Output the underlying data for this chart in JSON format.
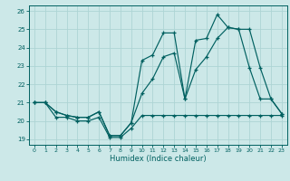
{
  "xlabel": "Humidex (Indice chaleur)",
  "background_color": "#cce8e8",
  "grid_color": "#add4d4",
  "line_color": "#006060",
  "xlim": [
    -0.5,
    23.5
  ],
  "ylim": [
    18.7,
    26.3
  ],
  "yticks": [
    19,
    20,
    21,
    22,
    23,
    24,
    25,
    26
  ],
  "xticks": [
    0,
    1,
    2,
    3,
    4,
    5,
    6,
    7,
    8,
    9,
    10,
    11,
    12,
    13,
    14,
    15,
    16,
    17,
    18,
    19,
    20,
    21,
    22,
    23
  ],
  "series1_x": [
    0,
    1,
    2,
    3,
    4,
    5,
    6,
    7,
    8,
    9,
    10,
    11,
    12,
    13,
    14,
    15,
    16,
    17,
    18,
    19,
    20,
    21,
    22,
    23
  ],
  "series1_y": [
    21.0,
    21.0,
    20.2,
    20.2,
    20.0,
    20.0,
    20.2,
    19.1,
    19.1,
    19.6,
    20.3,
    20.3,
    20.3,
    20.3,
    20.3,
    20.3,
    20.3,
    20.3,
    20.3,
    20.3,
    20.3,
    20.3,
    20.3,
    20.3
  ],
  "series2_x": [
    0,
    1,
    2,
    3,
    4,
    5,
    6,
    7,
    8,
    9,
    10,
    11,
    12,
    13,
    14,
    15,
    16,
    17,
    18,
    19,
    20,
    21,
    22,
    23
  ],
  "series2_y": [
    21.0,
    21.0,
    20.5,
    20.3,
    20.2,
    20.2,
    20.5,
    19.2,
    19.2,
    19.9,
    23.3,
    23.6,
    24.8,
    24.8,
    21.2,
    24.4,
    24.5,
    25.8,
    25.1,
    25.0,
    22.9,
    21.2,
    21.2,
    20.4
  ],
  "series3_x": [
    0,
    1,
    2,
    3,
    4,
    5,
    6,
    7,
    8,
    9,
    10,
    11,
    12,
    13,
    14,
    15,
    16,
    17,
    18,
    19,
    20,
    21,
    22,
    23
  ],
  "series3_y": [
    21.0,
    21.0,
    20.5,
    20.3,
    20.2,
    20.2,
    20.5,
    19.2,
    19.2,
    19.9,
    21.5,
    22.3,
    23.5,
    23.7,
    21.2,
    22.8,
    23.5,
    24.5,
    25.1,
    25.0,
    25.0,
    22.9,
    21.2,
    20.4
  ]
}
